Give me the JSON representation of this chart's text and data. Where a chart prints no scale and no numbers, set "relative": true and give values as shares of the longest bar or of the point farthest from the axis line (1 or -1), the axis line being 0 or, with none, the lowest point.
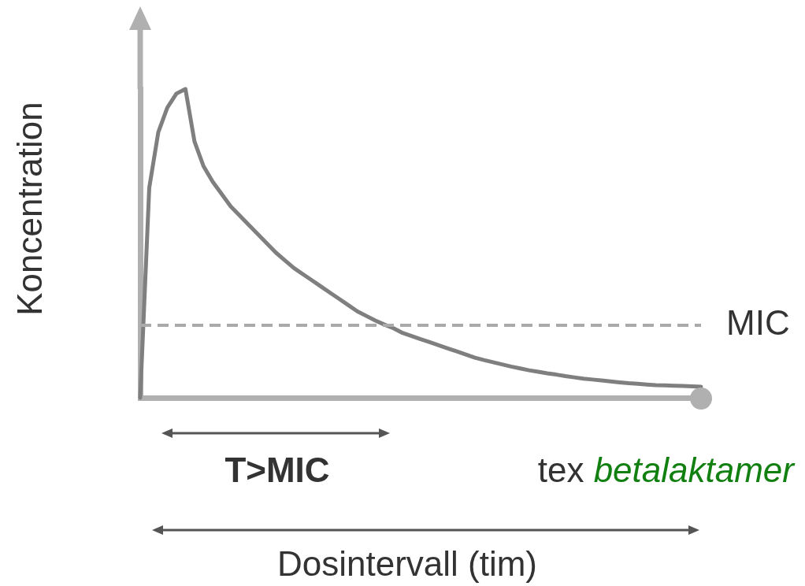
{
  "chart_data": {
    "type": "line",
    "relative": true,
    "xlabel": "Dosintervall (tim)",
    "ylabel": "Koncentration",
    "categories": [
      null,
      null,
      null,
      null,
      null,
      null,
      null,
      null,
      null,
      null,
      null,
      null,
      null,
      null,
      null,
      null,
      null,
      null,
      null,
      null,
      null,
      null,
      null,
      null,
      null,
      null,
      null,
      null,
      null,
      null,
      null,
      null,
      null,
      null,
      null,
      null,
      null,
      null,
      null,
      null,
      null,
      null,
      null,
      null,
      null,
      null,
      null,
      null,
      null,
      null,
      null,
      null,
      null,
      null,
      null,
      null,
      null,
      null,
      null,
      null,
      null,
      null,
      null
    ],
    "tick_labels": false,
    "legend": false,
    "marker": "none",
    "line_style": "solid",
    "series": [
      {
        "color": "#7f7f7f",
        "values": [
          0,
          0.68,
          0.86,
          0.94,
          0.985,
          1,
          0.83,
          0.75,
          0.7,
          0.66,
          0.62,
          0.59,
          0.56,
          0.53,
          0.5,
          0.47,
          0.445,
          0.42,
          0.4,
          0.38,
          0.36,
          0.34,
          0.32,
          0.3,
          0.28,
          0.265,
          0.25,
          0.237,
          0.225,
          0.21,
          0.2,
          0.19,
          0.18,
          0.17,
          0.16,
          0.15,
          0.14,
          0.13,
          0.122,
          0.115,
          0.108,
          0.101,
          0.095,
          0.089,
          0.084,
          0.079,
          0.075,
          0.07,
          0.066,
          0.062,
          0.059,
          0.056,
          0.053,
          0.05,
          0.047,
          0.045,
          0.043,
          0.041,
          0.04,
          0.039,
          0.038,
          0.037,
          0.036
        ]
      }
    ],
    "ref_lines": [
      {
        "axis": "y",
        "value": 0.235,
        "label": "MIC",
        "color": "#aaaaaa",
        "line_style": "dashed"
      }
    ],
    "annotations": [
      "T>MIC",
      "tex",
      "betalaktamer"
    ]
  }
}
